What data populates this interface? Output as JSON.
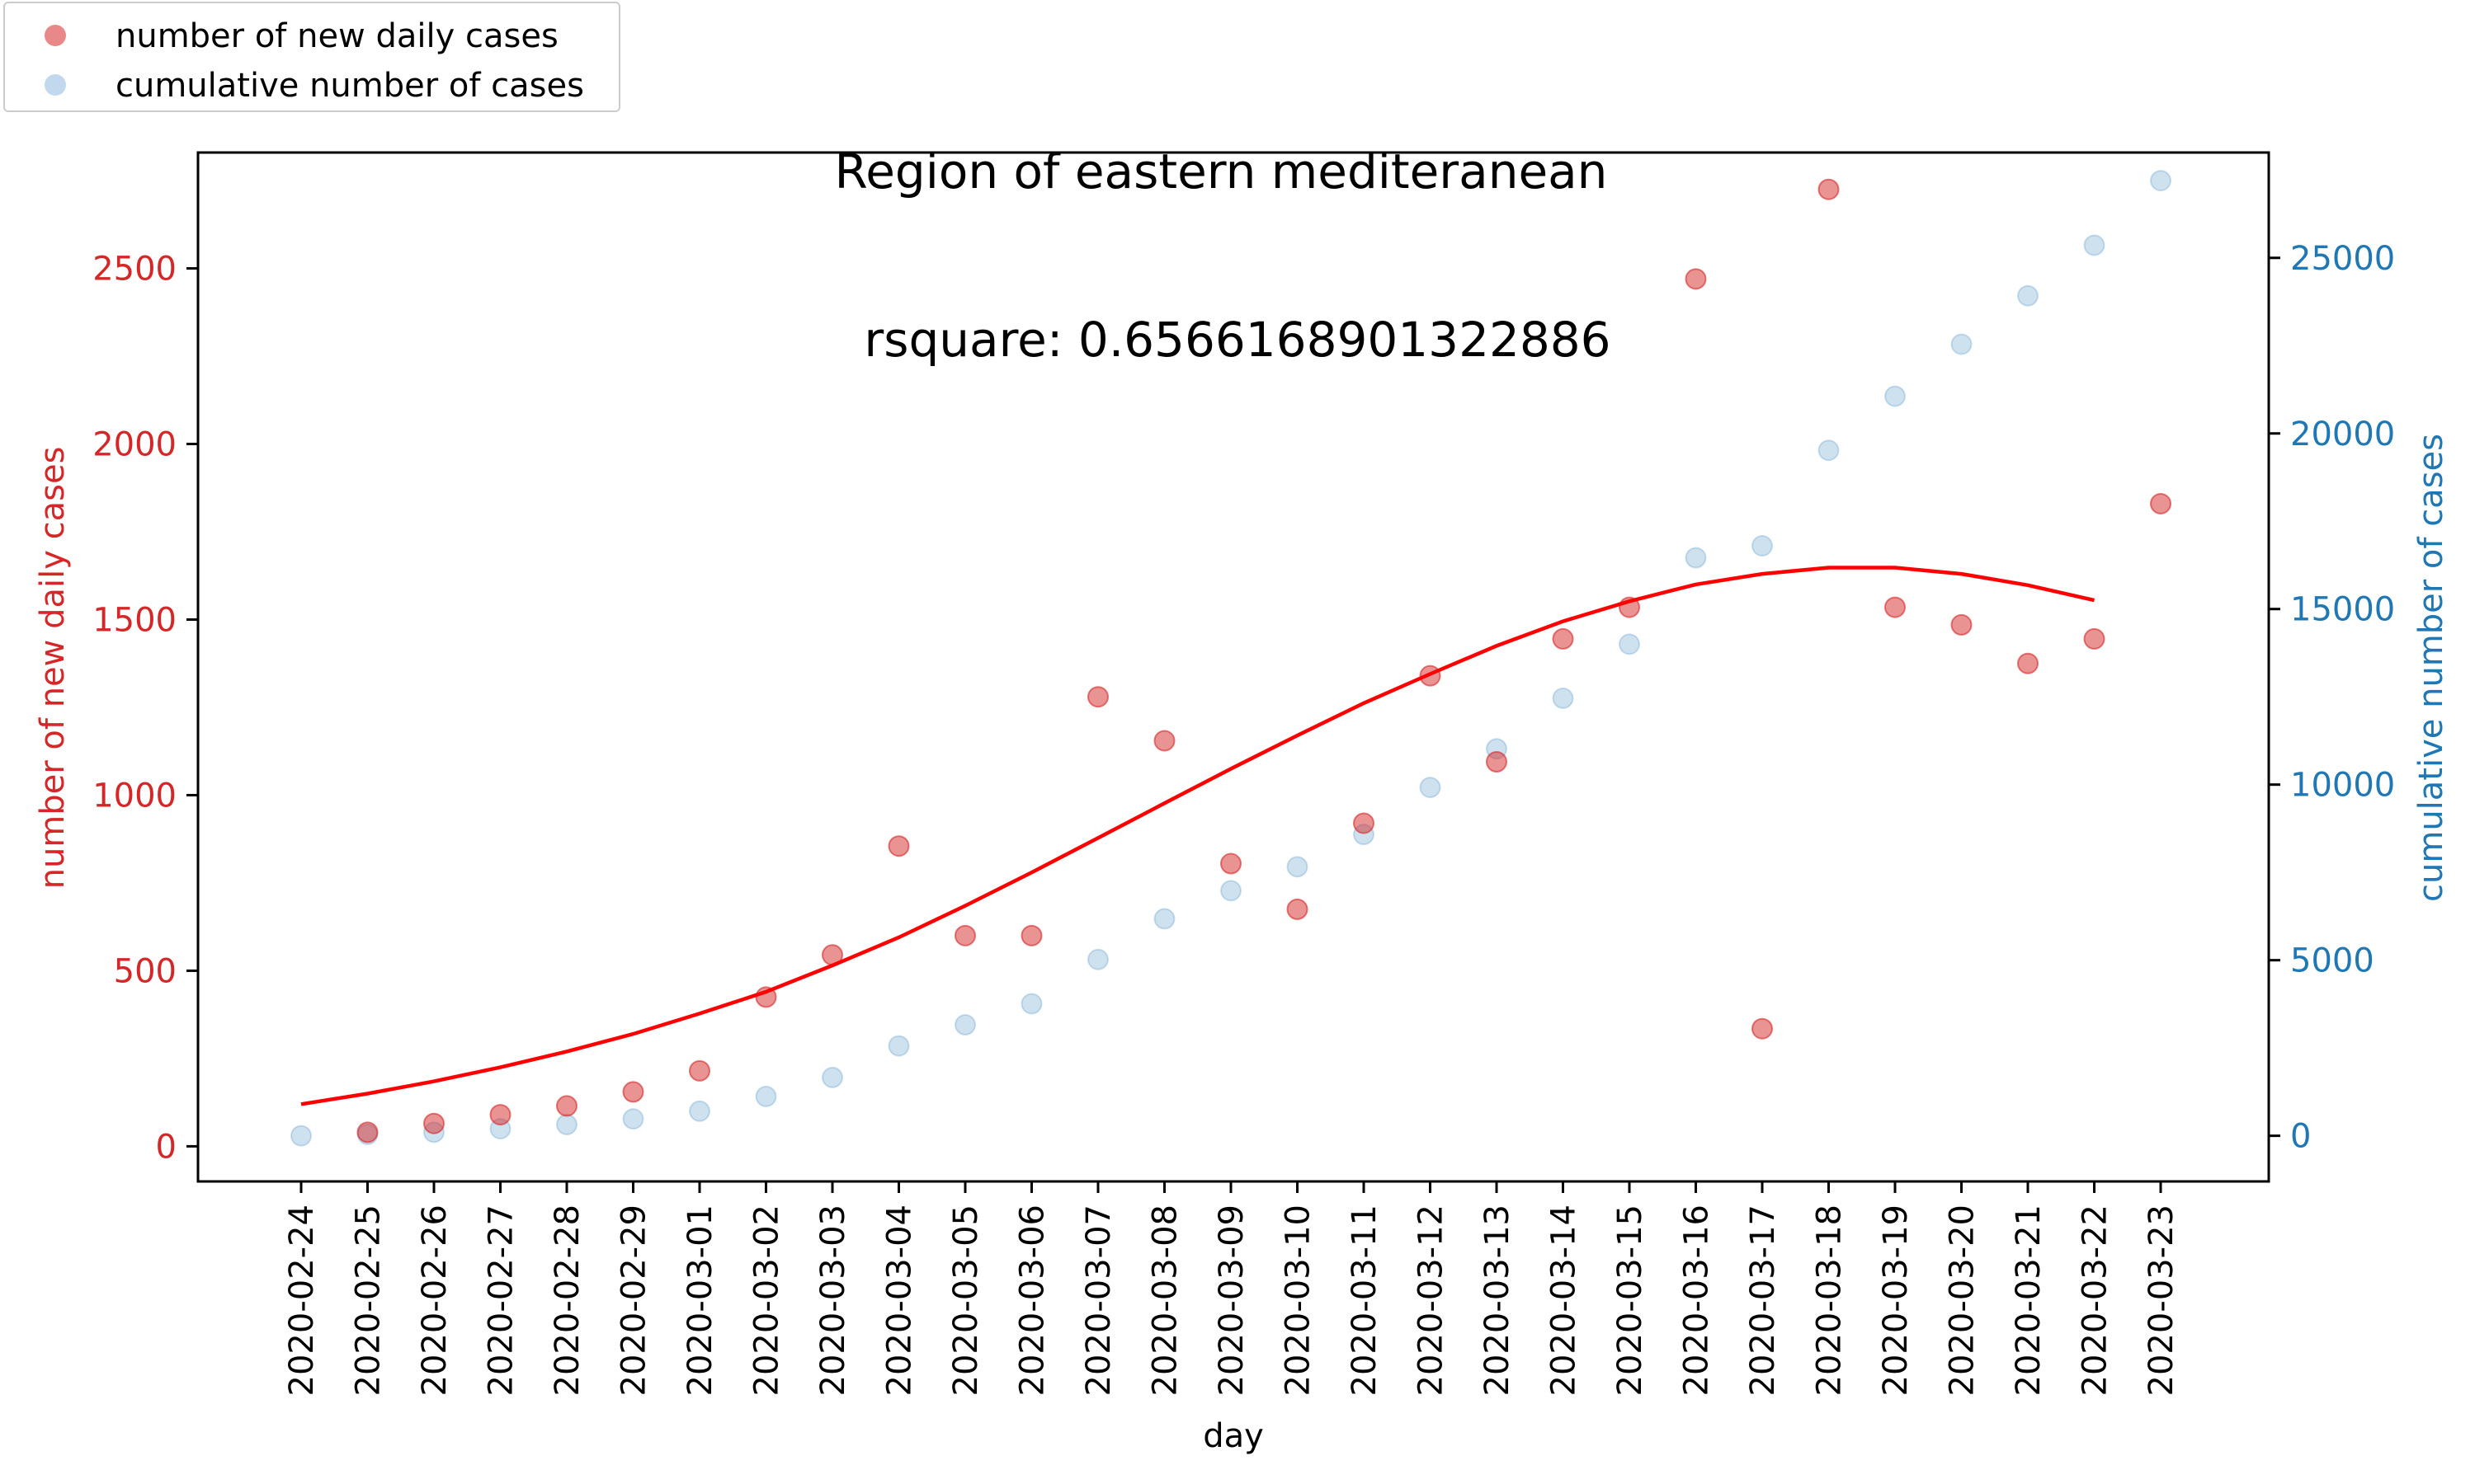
{
  "title_line1": "Region of eastern mediteranean",
  "title_line2": "rsquare: 0.6566168901322886",
  "colors": {
    "new_cases": "#d62728",
    "cumulative": "#1f77b4",
    "fit": "#ff0000",
    "cumulative_marker": "#aecbe6"
  },
  "legend": {
    "new_cases_label": "number of new daily cases",
    "cumulative_label": "cumulative number of cases"
  },
  "chart_data": {
    "type": "scatter",
    "title": "Region of eastern mediteranean\nrsquare: 0.6566168901322886",
    "xlabel": "day",
    "ylabel_left": "number of new daily cases",
    "ylabel_right": "cumulative number of cases",
    "ylim_left": [
      -100,
      2830
    ],
    "ylim_right": [
      -1300,
      28000
    ],
    "yticks_left": [
      0,
      500,
      1000,
      1500,
      2000,
      2500
    ],
    "yticks_right": [
      0,
      5000,
      10000,
      15000,
      20000,
      25000
    ],
    "legend_position": "top-left",
    "grid": false,
    "categories": [
      "2020-02-24",
      "2020-02-25",
      "2020-02-26",
      "2020-02-27",
      "2020-02-28",
      "2020-02-29",
      "2020-03-01",
      "2020-03-02",
      "2020-03-03",
      "2020-03-04",
      "2020-03-05",
      "2020-03-06",
      "2020-03-07",
      "2020-03-08",
      "2020-03-09",
      "2020-03-10",
      "2020-03-11",
      "2020-03-12",
      "2020-03-13",
      "2020-03-14",
      "2020-03-15",
      "2020-03-16",
      "2020-03-17",
      "2020-03-18",
      "2020-03-19",
      "2020-03-20",
      "2020-03-21",
      "2020-03-22",
      "2020-03-23"
    ],
    "series": [
      {
        "name": "number of new daily cases",
        "axis": "left",
        "values": [
          null,
          40,
          65,
          90,
          115,
          155,
          215,
          425,
          545,
          855,
          600,
          600,
          1280,
          1155,
          805,
          675,
          920,
          1340,
          1095,
          1445,
          1535,
          2470,
          335,
          2725,
          1535,
          1485,
          1375,
          1445,
          1830
        ]
      },
      {
        "name": "cumulative number of cases",
        "axis": "right",
        "values": [
          0,
          40,
          100,
          200,
          320,
          480,
          700,
          1120,
          1660,
          2560,
          3160,
          3760,
          5020,
          6180,
          6980,
          7660,
          8580,
          9920,
          11020,
          12460,
          14000,
          16460,
          16800,
          19520,
          21060,
          22540,
          23920,
          25360,
          27200
        ]
      },
      {
        "name": "",
        "axis": "left",
        "type": "line",
        "values": [
          120,
          150,
          185,
          225,
          270,
          320,
          378,
          440,
          515,
          595,
          685,
          780,
          878,
          977,
          1075,
          1170,
          1262,
          1345,
          1425,
          1495,
          1552,
          1600,
          1630,
          1648,
          1648,
          1630,
          1598,
          1555,
          null
        ]
      }
    ]
  }
}
